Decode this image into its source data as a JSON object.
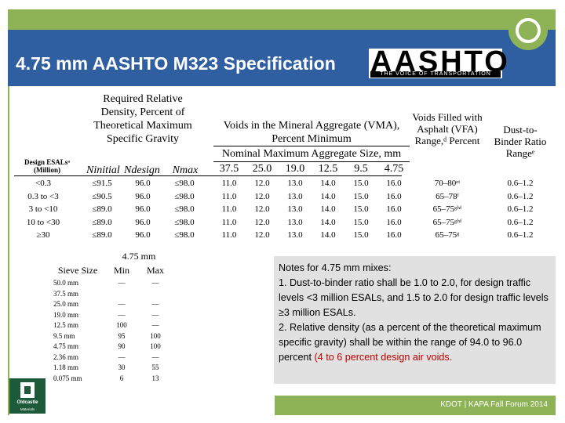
{
  "slide": {
    "title": "4.75 mm AASHTO M323 Specification",
    "footer": "KDOT | KAPA Fall Forum 2014",
    "colors": {
      "green": "#8eb356",
      "blue": "#2f5ea1",
      "notes_bg": "#e1e1e1",
      "highlight": "#c00000"
    }
  },
  "logo": {
    "main": "AASHTO",
    "tagline": "THE VOICE OF TRANSPORTATION"
  },
  "oldcastle": {
    "name": "Oldcastle",
    "sub": "Materials"
  },
  "spec_table": {
    "head_density": "Required Relative Density, Percent of Theoretical Maximum Specific Gravity",
    "head_vma": "Voids in the Mineral Aggregate (VMA), Percent Minimum",
    "head_vfa": "Voids Filled with Asphalt (VFA) Range,ᵈ Percent",
    "head_db": "Dust-to-Binder Ratio Rangeᵉ",
    "head_nmas": "Nominal Maximum Aggregate Size, mm",
    "head_esal": "Design ESALsᵃ (Million)",
    "col_nini": "Ninitial",
    "col_ndes": "Ndesign",
    "col_nmax": "Nmax",
    "nmas": [
      "37.5",
      "25.0",
      "19.0",
      "12.5",
      "9.5",
      "4.75"
    ],
    "rows": [
      {
        "esal": "<0.3",
        "nini": "≤91.5",
        "ndes": "96.0",
        "nmax": "≤98.0",
        "vma": [
          "11.0",
          "12.0",
          "13.0",
          "14.0",
          "15.0",
          "16.0"
        ],
        "vfa": "70–80ᵉᵗ",
        "db": "0.6–1.2"
      },
      {
        "esal": "0.3 to <3",
        "nini": "≤90.5",
        "ndes": "96.0",
        "nmax": "≤98.0",
        "vma": [
          "11.0",
          "12.0",
          "13.0",
          "14.0",
          "15.0",
          "16.0"
        ],
        "vfa": "65–78ᶠ",
        "db": "0.6–1.2"
      },
      {
        "esal": "3 to <10",
        "nini": "≤89.0",
        "ndes": "96.0",
        "nmax": "≤98.0",
        "vma": [
          "11.0",
          "12.0",
          "13.0",
          "14.0",
          "15.0",
          "16.0"
        ],
        "vfa": "65–75ᵍʰᶠ",
        "db": "0.6–1.2"
      },
      {
        "esal": "10 to <30",
        "nini": "≤89.0",
        "ndes": "96.0",
        "nmax": "≤98.0",
        "vma": [
          "11.0",
          "12.0",
          "13.0",
          "14.0",
          "15.0",
          "16.0"
        ],
        "vfa": "65–75ᵍʰᶠ",
        "db": "0.6–1.2"
      },
      {
        "esal": "≥30",
        "nini": "≤89.0",
        "ndes": "96.0",
        "nmax": "≤98.0",
        "vma": [
          "11.0",
          "12.0",
          "13.0",
          "14.0",
          "15.0",
          "16.0"
        ],
        "vfa": "65–75ᵍ",
        "db": "0.6–1.2"
      }
    ]
  },
  "sieve_table": {
    "group": "4.75 mm",
    "col_size": "Sieve Size",
    "col_min": "Min",
    "col_max": "Max",
    "rows": [
      {
        "size": "50.0 mm",
        "min": "—",
        "max": "—"
      },
      {
        "size": "37.5 mm",
        "min": "",
        "max": ""
      },
      {
        "size": "25.0 mm",
        "min": "—",
        "max": "—"
      },
      {
        "size": "19.0 mm",
        "min": "—",
        "max": "—"
      },
      {
        "size": "12.5 mm",
        "min": "100",
        "max": "—"
      },
      {
        "size": "9.5 mm",
        "min": "95",
        "max": "100"
      },
      {
        "size": "4.75 mm",
        "min": "90",
        "max": "100"
      },
      {
        "size": "2.36 mm",
        "min": "—",
        "max": "—"
      },
      {
        "size": "1.18 mm",
        "min": "30",
        "max": "55"
      },
      {
        "size": "0.075 mm",
        "min": "6",
        "max": "13"
      }
    ]
  },
  "notes": {
    "title": "Notes for 4.75 mm mixes:",
    "note1": "1. Dust-to-binder ratio shall be 1.0 to 2.0, for design traffic levels <3 million ESALs, and 1.5 to 2.0 for design traffic levels ≥3 million ESALs.",
    "note2_a": "2. Relative density (as a percent of the theoretical maximum specific gravity) shall be within the range of 94.0 to 96.0 percent",
    "note2_b": "(4 to 6 percent design air voids."
  }
}
